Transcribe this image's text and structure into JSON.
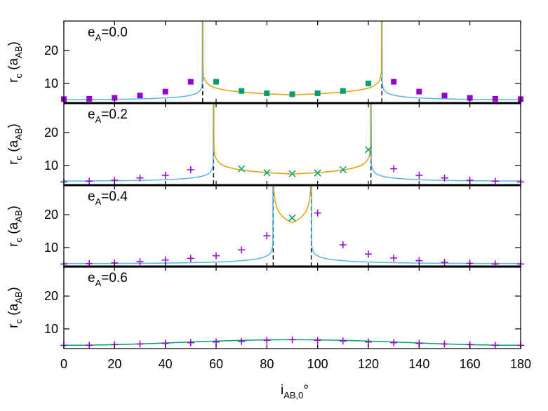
{
  "colors": {
    "curve_blue": "#56b4e9",
    "curve_orange": "#e69f00",
    "curve_green": "#009e73",
    "marker_purple": "#9400d3",
    "marker_green": "#009e73",
    "vline": "#000000"
  },
  "chart_data": {
    "type": "line",
    "x_axis": {
      "label_main": "i",
      "label_sub": "AB,0",
      "label_unit": "°",
      "range": [
        0,
        180
      ],
      "ticks": [
        0,
        20,
        40,
        60,
        80,
        100,
        120,
        140,
        160,
        180
      ],
      "tick_labels": [
        "0",
        "20",
        "40",
        "60",
        "80",
        "100",
        "120",
        "140",
        "160",
        "180"
      ]
    },
    "y_axis": {
      "label_main": "r",
      "label_sub1": "c",
      "label_mid": " (a",
      "label_sub2": "AB",
      "label_end": ")",
      "range": [
        4,
        29
      ],
      "ticks": [
        10,
        20
      ],
      "tick_labels": [
        "10",
        "20"
      ]
    },
    "panels": [
      {
        "label_main": "e",
        "label_sub": "A",
        "label_value": "=0.0",
        "ecc": 0.0,
        "crit": [
          54.7,
          125.3
        ],
        "marker": "square",
        "points_purple": [
          [
            0,
            5.2
          ],
          [
            10,
            5.3
          ],
          [
            20,
            5.6
          ],
          [
            30,
            6.3
          ],
          [
            40,
            7.5
          ],
          [
            50,
            10.5
          ],
          [
            130,
            10.5
          ],
          [
            140,
            7.5
          ],
          [
            150,
            6.3
          ],
          [
            160,
            5.6
          ],
          [
            170,
            5.3
          ],
          [
            180,
            5.2
          ]
        ],
        "points_green": [
          [
            60,
            10.5
          ],
          [
            70,
            7.7
          ],
          [
            80,
            7.0
          ],
          [
            90,
            6.7
          ],
          [
            100,
            7.0
          ],
          [
            110,
            7.7
          ],
          [
            120,
            10.0
          ]
        ]
      },
      {
        "label_main": "e",
        "label_sub": "A",
        "label_value": "=0.2",
        "ecc": 0.2,
        "crit": [
          59,
          121
        ],
        "marker": "cross",
        "points_purple": [
          [
            0,
            5.0
          ],
          [
            10,
            5.2
          ],
          [
            20,
            5.5
          ],
          [
            30,
            6.2
          ],
          [
            40,
            7.0
          ],
          [
            50,
            8.7
          ],
          [
            130,
            9.0
          ],
          [
            140,
            7.0
          ],
          [
            150,
            6.2
          ],
          [
            160,
            5.5
          ],
          [
            170,
            5.2
          ],
          [
            180,
            5.0
          ]
        ],
        "points_green": [
          [
            70,
            9.0
          ],
          [
            80,
            7.8
          ],
          [
            90,
            7.5
          ],
          [
            100,
            7.7
          ],
          [
            110,
            8.7
          ],
          [
            120,
            14.8
          ]
        ]
      },
      {
        "label_main": "e",
        "label_sub": "A",
        "label_value": "=0.4",
        "ecc": 0.4,
        "crit": [
          82.5,
          97.5
        ],
        "marker": "cross",
        "points_purple": [
          [
            0,
            5.0
          ],
          [
            10,
            5.1
          ],
          [
            20,
            5.3
          ],
          [
            30,
            5.7
          ],
          [
            40,
            6.2
          ],
          [
            50,
            6.7
          ],
          [
            60,
            7.5
          ],
          [
            70,
            9.3
          ],
          [
            80,
            13.6
          ],
          [
            100,
            20.5
          ],
          [
            110,
            10.8
          ],
          [
            120,
            8.0
          ],
          [
            130,
            6.8
          ],
          [
            140,
            6.0
          ],
          [
            150,
            5.5
          ],
          [
            160,
            5.2
          ],
          [
            170,
            5.0
          ],
          [
            180,
            5.0
          ]
        ],
        "points_green": [
          [
            90,
            19.0
          ]
        ]
      },
      {
        "label_main": "e",
        "label_sub": "A",
        "label_value": "=0.6",
        "ecc": 0.6,
        "crit": [],
        "marker": "cross",
        "points_purple": [
          [
            0,
            5.0
          ],
          [
            10,
            5.0
          ],
          [
            20,
            5.2
          ],
          [
            30,
            5.4
          ],
          [
            40,
            5.6
          ],
          [
            50,
            5.8
          ],
          [
            60,
            6.0
          ],
          [
            70,
            6.2
          ],
          [
            80,
            6.5
          ],
          [
            90,
            6.7
          ],
          [
            100,
            6.5
          ],
          [
            110,
            6.3
          ],
          [
            120,
            6.0
          ],
          [
            130,
            5.8
          ],
          [
            140,
            5.6
          ],
          [
            150,
            5.4
          ],
          [
            160,
            5.2
          ],
          [
            170,
            5.0
          ],
          [
            180,
            5.0
          ]
        ],
        "points_green": []
      }
    ]
  }
}
